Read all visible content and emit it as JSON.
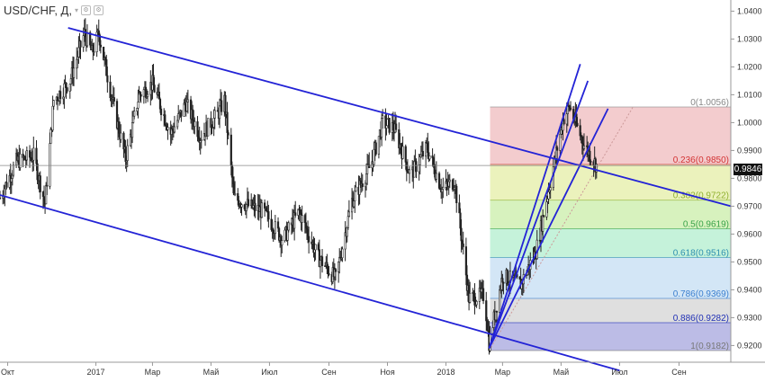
{
  "header": {
    "symbol": "USD/CHF, Д,",
    "dropdown_icon": "chevron-down-icon",
    "icons": [
      "settings-icon",
      "gear-icon"
    ]
  },
  "last_price": "0.9846",
  "chart_data": {
    "type": "candlestick",
    "symbol": "USD/CHF",
    "timeframe": "Д",
    "y_ticks": [
      "1.0400",
      "1.0300",
      "1.0200",
      "1.0100",
      "1.0000",
      "0.9900",
      "0.9800",
      "0.9700",
      "0.9600",
      "0.9500",
      "0.9400",
      "0.9300",
      "0.9200"
    ],
    "ylim": [
      0.914,
      1.044
    ],
    "x_ticks": [
      "Окт",
      "2017",
      "Мар",
      "Май",
      "Июл",
      "Сен",
      "Ноя",
      "2018",
      "Мар",
      "Май",
      "Июл",
      "Сен"
    ],
    "xlim": [
      "2016-09-23",
      "2018-10-25"
    ],
    "x_tick_dates": [
      "2016-10-01",
      "2017-01-01",
      "2017-03-01",
      "2017-05-01",
      "2017-07-01",
      "2017-09-01",
      "2017-11-01",
      "2018-01-01",
      "2018-03-01",
      "2018-05-01",
      "2018-07-01",
      "2018-09-01"
    ],
    "price_path": [
      [
        "2016-09-23",
        0.973
      ],
      [
        "2016-10-10",
        0.986
      ],
      [
        "2016-10-28",
        0.988
      ],
      [
        "2016-11-09",
        0.971
      ],
      [
        "2016-11-18",
        1.008
      ],
      [
        "2016-12-05",
        1.015
      ],
      [
        "2016-12-20",
        1.032
      ],
      [
        "2016-12-28",
        1.025
      ],
      [
        "2017-01-04",
        1.032
      ],
      [
        "2017-01-20",
        1.005
      ],
      [
        "2017-02-01",
        0.987
      ],
      [
        "2017-02-15",
        1.01
      ],
      [
        "2017-03-01",
        1.014
      ],
      [
        "2017-03-20",
        0.996
      ],
      [
        "2017-04-05",
        1.007
      ],
      [
        "2017-04-20",
        0.995
      ],
      [
        "2017-05-08",
        1.003
      ],
      [
        "2017-05-15",
        1.008
      ],
      [
        "2017-05-25",
        0.973
      ],
      [
        "2017-06-10",
        0.97
      ],
      [
        "2017-06-25",
        0.968
      ],
      [
        "2017-07-15",
        0.958
      ],
      [
        "2017-08-01",
        0.968
      ],
      [
        "2017-08-20",
        0.952
      ],
      [
        "2017-09-08",
        0.944
      ],
      [
        "2017-09-25",
        0.972
      ],
      [
        "2017-10-15",
        0.985
      ],
      [
        "2017-10-27",
        1.0
      ],
      [
        "2017-11-08",
        0.998
      ],
      [
        "2017-11-25",
        0.981
      ],
      [
        "2017-12-12",
        0.991
      ],
      [
        "2017-12-28",
        0.976
      ],
      [
        "2018-01-10",
        0.979
      ],
      [
        "2018-01-25",
        0.937
      ],
      [
        "2018-02-10",
        0.938
      ],
      [
        "2018-02-15",
        0.921
      ],
      [
        "2018-03-01",
        0.945
      ],
      [
        "2018-03-20",
        0.942
      ],
      [
        "2018-04-05",
        0.954
      ],
      [
        "2018-04-20",
        0.979
      ],
      [
        "2018-05-03",
        1.001
      ],
      [
        "2018-05-10",
        1.0056
      ],
      [
        "2018-05-25",
        0.992
      ],
      [
        "2018-06-07",
        0.9846
      ]
    ],
    "trend_lines": [
      {
        "from": [
          "2016-12-03",
          1.034
        ],
        "to": [
          "2018-10-25",
          0.97
        ]
      },
      {
        "from": [
          "2016-09-23",
          0.974
        ],
        "to": [
          "2018-07-01",
          0.911
        ]
      },
      {
        "from": [
          "2018-02-15",
          0.919
        ],
        "to": [
          "2018-05-21",
          1.021
        ]
      },
      {
        "from": [
          "2018-02-15",
          0.919
        ],
        "to": [
          "2018-05-29",
          1.015
        ]
      },
      {
        "from": [
          "2018-02-15",
          0.919
        ],
        "to": [
          "2018-06-19",
          1.005
        ]
      }
    ],
    "fib": {
      "start_date": "2018-02-16",
      "end_date": "2018-10-25",
      "levels": [
        {
          "ratio": "0",
          "label": "0(1.0056)",
          "price": 1.0056,
          "fill": "#e58e93",
          "text_color": "#888888"
        },
        {
          "ratio": "0.236",
          "label": "0.236(0.9850)",
          "price": 0.985,
          "fill": "#d3e36a",
          "text_color": "#d33333"
        },
        {
          "ratio": "0.382",
          "label": "0.382(0.9722)",
          "price": 0.9722,
          "fill": "#a6e36f",
          "text_color": "#90b030"
        },
        {
          "ratio": "0.5",
          "label": "0.5(0.9619)",
          "price": 0.9619,
          "fill": "#7ee3ae",
          "text_color": "#3aa34a"
        },
        {
          "ratio": "0.618",
          "label": "0.618(0.9516)",
          "price": 0.9516,
          "fill": "#9ec8ea",
          "text_color": "#3090b0"
        },
        {
          "ratio": "0.786",
          "label": "0.786(0.9369)",
          "price": 0.9369,
          "fill": "#b9b9b9",
          "text_color": "#3b7fcf"
        },
        {
          "ratio": "0.886",
          "label": "0.886(0.9282)",
          "price": 0.9282,
          "fill": "#6a6ac8",
          "text_color": "#1f2fb5"
        },
        {
          "ratio": "1",
          "label": "1(0.9182)",
          "price": 0.9182,
          "fill": null,
          "text_color": "#777777"
        }
      ]
    },
    "current_price": 0.9846,
    "colors": {
      "candle": "#222222",
      "trend": "#2323d6",
      "fib_diagonal": "#cc9999",
      "price_line": "#888888"
    },
    "grid": false
  }
}
